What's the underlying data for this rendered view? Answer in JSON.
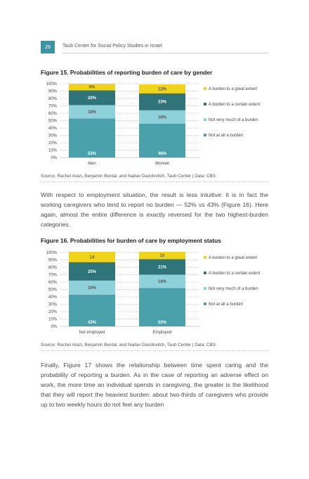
{
  "header": {
    "page_number": "26",
    "title": "Taub Center for Social Policy Studies in Israel"
  },
  "legend": {
    "top": "A burden to a great extent",
    "certain": "A burden to a certain extent",
    "notmuch": "Not very much of a burden",
    "notatall": "Not at all a burden"
  },
  "colors": {
    "top": "#f0d41c",
    "certain": "#2f7478",
    "notmuch": "#8fd1db",
    "notatall": "#4aa1ab"
  },
  "figures": [
    {
      "title": "Figure 15. Probabilities of reporting burden of care by gender",
      "source": "Source: Rachel Arazi, Benjamin Bental, and Nadav Davidovitch, Taub Center | Data: CBS"
    },
    {
      "title": "Figure 16. Probabilities for burden of care by employment status",
      "source": "Source: Rachel Arazi, Benjamin Bental, and Nadav Davidovitch, Taub Center | Data: CBS"
    }
  ],
  "paragraphs": [
    "With respect to employment situation, the result is less intuitive: it is in fact the working caregivers who tend to report no burden — 52% vs 43% (Figure 16). Here again, almost the entire difference is exactly reversed for the two highest-burden categories.",
    "Finally, Figure 17 shows the relationship between time spent caring and the probability of reporting a burden. As in the case of reporting an adverse effect on work, the more time an individual spends in caregiving, the greater is the likelihood that they will report the heaviest burden: about two-thirds of caregivers who provide up to two weekly hours do not feel any burden"
  ],
  "chart_data": [
    {
      "type": "bar",
      "stacked": true,
      "title": "Figure 15. Probabilities of reporting burden of care by gender",
      "categories": [
        "Men",
        "Women"
      ],
      "ylim": [
        0,
        100
      ],
      "yticks": [
        "0%",
        "10%",
        "20%",
        "30%",
        "40%",
        "50%",
        "60%",
        "70%",
        "80%",
        "90%",
        "100%"
      ],
      "legend_position": "right",
      "series": [
        {
          "name": "Not at all a burden",
          "key": "notatall",
          "values": [
            53,
            46
          ],
          "labels": [
            "53%",
            "46%"
          ]
        },
        {
          "name": "Not very much of a burden",
          "key": "notmuch",
          "values": [
            18,
            18
          ],
          "labels": [
            "18%",
            "18%"
          ]
        },
        {
          "name": "A burden to a certain extent",
          "key": "certain",
          "values": [
            20,
            23
          ],
          "labels": [
            "20%",
            "23%"
          ]
        },
        {
          "name": "A burden to a great extent",
          "key": "top",
          "values": [
            9,
            12
          ],
          "labels": [
            "9%",
            "12%"
          ]
        }
      ]
    },
    {
      "type": "bar",
      "stacked": true,
      "title": "Figure 16. Probabilities for burden of care by employment status",
      "categories": [
        "Not employed",
        "Employed"
      ],
      "ylim": [
        0,
        100
      ],
      "yticks": [
        "0%",
        "10%",
        "20%",
        "30%",
        "40%",
        "50%",
        "60%",
        "70%",
        "80%",
        "90%",
        "100%"
      ],
      "legend_position": "right",
      "series": [
        {
          "name": "Not at all a burden",
          "key": "notatall",
          "values": [
            43,
            52
          ],
          "labels": [
            "43%",
            "52%"
          ]
        },
        {
          "name": "Not very much of a burden",
          "key": "notmuch",
          "values": [
            19,
            18
          ],
          "labels": [
            "19%",
            "18%"
          ]
        },
        {
          "name": "A burden to a certain extent",
          "key": "certain",
          "values": [
            25,
            21
          ],
          "labels": [
            "25%",
            "21%"
          ]
        },
        {
          "name": "A burden to a great extent",
          "key": "top",
          "values": [
            14,
            10
          ],
          "labels": [
            "14",
            "10"
          ]
        }
      ]
    }
  ]
}
